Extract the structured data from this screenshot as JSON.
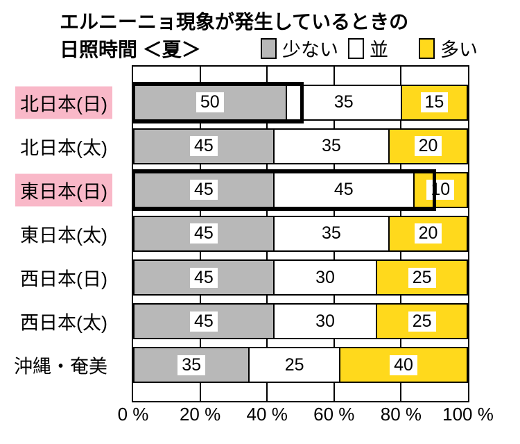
{
  "title": {
    "line1": "エルニーニョ現象が発生しているときの",
    "line2": "日照時間 ＜夏＞"
  },
  "legend": {
    "position": "top",
    "items": [
      {
        "key": "few",
        "label": "少ない",
        "color": "#b8b8b8"
      },
      {
        "key": "normal",
        "label": "並",
        "color": "#ffffff"
      },
      {
        "key": "many",
        "label": "多い",
        "color": "#ffd91c"
      }
    ]
  },
  "chart_data": {
    "type": "bar",
    "orientation": "horizontal",
    "stacked": true,
    "title": "エルニーニョ現象が発生しているときの日照時間＜夏＞",
    "unit": "%",
    "xlim": [
      0,
      100
    ],
    "grid": "vertical",
    "x_ticks": [
      {
        "label": "0 %",
        "pos": 0
      },
      {
        "label": "20 %",
        "pos": 20
      },
      {
        "label": "40 %",
        "pos": 40
      },
      {
        "label": "60 %",
        "pos": 60
      },
      {
        "label": "80 %",
        "pos": 80
      },
      {
        "label": "100 %",
        "pos": 100
      }
    ],
    "categories": [
      "北日本(日)",
      "北日本(太)",
      "東日本(日)",
      "東日本(太)",
      "西日本(日)",
      "西日本(太)",
      "沖縄・奄美"
    ],
    "highlighted_rows": [
      0,
      2
    ],
    "highlight_color": "#f9b8c8",
    "series": [
      {
        "key": "few",
        "name": "少ない",
        "color": "#b8b8b8",
        "values": [
          50,
          45,
          45,
          45,
          45,
          45,
          35
        ]
      },
      {
        "key": "normal",
        "name": "並",
        "color": "#ffffff",
        "values": [
          35,
          35,
          45,
          35,
          30,
          30,
          25
        ]
      },
      {
        "key": "many",
        "name": "多い",
        "color": "#ffd91c",
        "values": [
          15,
          20,
          10,
          20,
          25,
          25,
          40
        ]
      }
    ],
    "emphasis_outlines": [
      {
        "row": 0,
        "from": 0,
        "to": 50
      },
      {
        "row": 2,
        "from": 0,
        "to": 90
      }
    ]
  }
}
